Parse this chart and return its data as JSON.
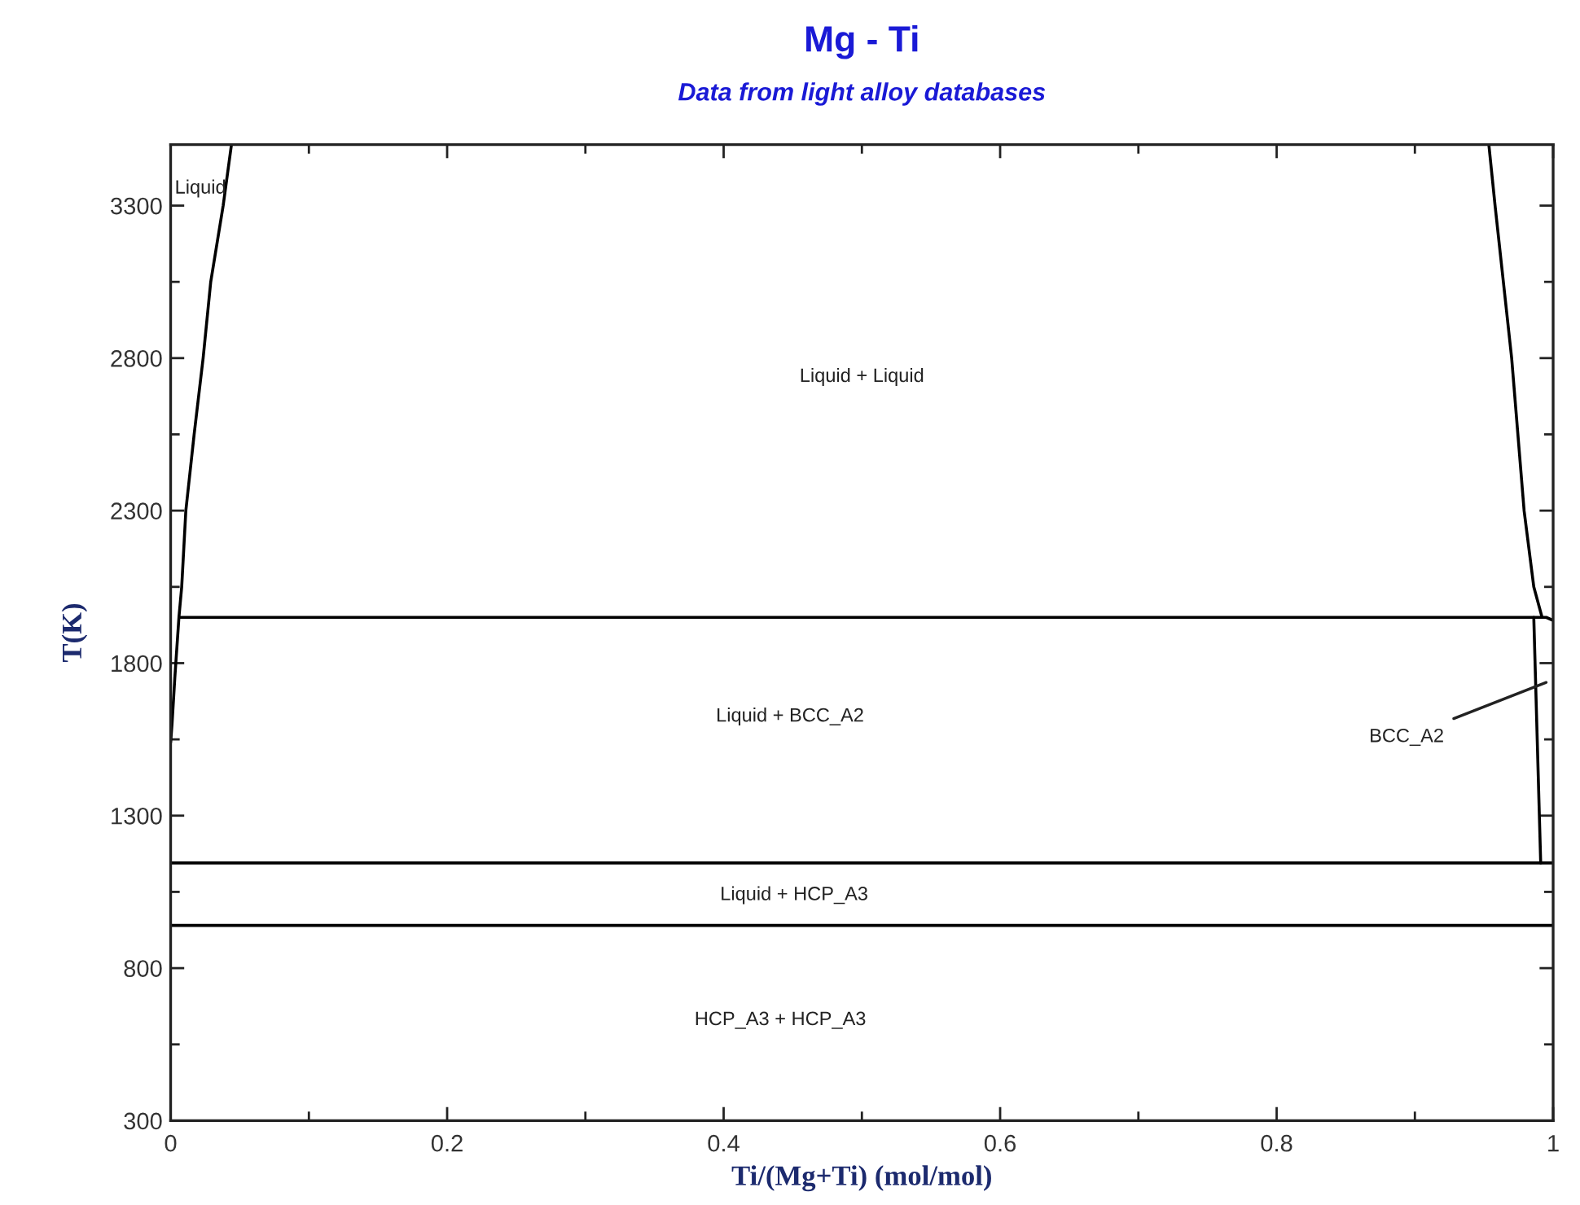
{
  "chart_data": {
    "type": "line",
    "title": "Mg - Ti",
    "subtitle": "Data from light alloy databases",
    "xlabel": "Ti/(Mg+Ti) (mol/mol)",
    "ylabel": "T(K)",
    "xlim": [
      0,
      1
    ],
    "ylim": [
      300,
      3500
    ],
    "xticks": [
      0,
      {
        "value": 0.1,
        "label": null
      },
      0.2,
      {
        "value": 0.3,
        "label": null
      },
      0.4,
      {
        "value": 0.5,
        "label": null
      },
      0.6,
      {
        "value": 0.7,
        "label": null
      },
      0.8,
      {
        "value": 0.9,
        "label": null
      },
      1
    ],
    "yticks": [
      300,
      {
        "value": 550,
        "label": null
      },
      800,
      {
        "value": 1050,
        "label": null
      },
      1300,
      {
        "value": 1550,
        "label": null
      },
      1800,
      {
        "value": 2050,
        "label": null
      },
      2300,
      {
        "value": 2550,
        "label": null
      },
      2800,
      {
        "value": 3050,
        "label": null
      },
      3300
    ],
    "series": [
      {
        "color": "#000000",
        "x": [
          0.044,
          0.038,
          0.029,
          0.0235,
          0.017,
          0.011,
          0.008,
          0.006,
          0.003,
          0.001,
          0
        ],
        "values": [
          3500,
          3300,
          3050,
          2800,
          2550,
          2300,
          2050,
          1950,
          1750,
          1600,
          1540
        ]
      },
      {
        "color": "#000000",
        "x": [
          0.9535,
          0.958,
          0.97,
          0.979,
          0.986,
          0.992
        ],
        "values": [
          3500,
          3300,
          2800,
          2300,
          2050,
          1950
        ]
      },
      {
        "color": "#000000",
        "x": [
          0.006,
          0.995,
          1
        ],
        "values": [
          1950,
          1950,
          1940
        ]
      },
      {
        "color": "#000000",
        "x": [
          0.986,
          0.991
        ],
        "values": [
          1950,
          1145
        ]
      },
      {
        "color": "#000000",
        "x": [
          0,
          1
        ],
        "values": [
          1145,
          1145
        ]
      },
      {
        "color": "#000000",
        "x": [
          0,
          1
        ],
        "values": [
          940,
          940
        ]
      }
    ],
    "annotations": [
      "Liquid",
      "Liquid + Liquid",
      "Liquid + BCC_A2",
      "BCC_A2",
      "Liquid + HCP_A3",
      "HCP_A3 + HCP_A3"
    ]
  }
}
